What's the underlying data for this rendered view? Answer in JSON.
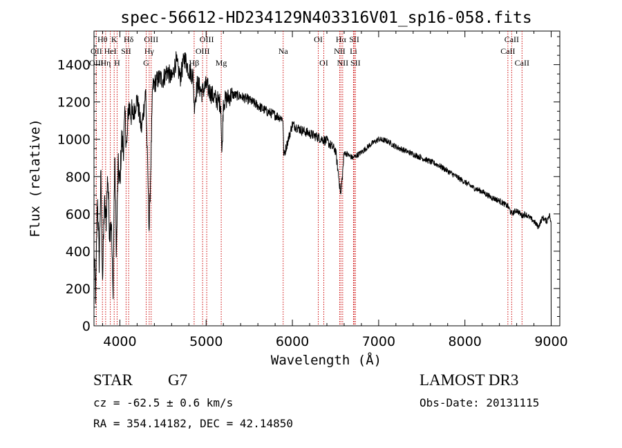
{
  "chart_data": {
    "type": "line",
    "title": "spec-56612-HD234129N403316V01_sp16-058.fits",
    "xlabel": "Wavelength (Å)",
    "ylabel": "Flux (relative)",
    "xlim": [
      3700,
      9100
    ],
    "ylim": [
      0,
      1580
    ],
    "x_ticks": [
      4000,
      5000,
      6000,
      7000,
      8000,
      9000
    ],
    "y_ticks": [
      0,
      200,
      400,
      600,
      800,
      1000,
      1200,
      1400
    ],
    "grid": false,
    "series": [
      {
        "name": "Flux",
        "color": "#000000",
        "x": [
          3700,
          3720,
          3740,
          3760,
          3780,
          3800,
          3820,
          3840,
          3860,
          3880,
          3900,
          3920,
          3940,
          3960,
          3980,
          4000,
          4020,
          4040,
          4060,
          4080,
          4100,
          4150,
          4200,
          4250,
          4300,
          4340,
          4380,
          4420,
          4460,
          4500,
          4550,
          4600,
          4650,
          4700,
          4750,
          4800,
          4850,
          4861,
          4900,
          4950,
          5000,
          5050,
          5100,
          5150,
          5170,
          5183,
          5200,
          5250,
          5300,
          5400,
          5500,
          5600,
          5700,
          5800,
          5890,
          5900,
          6000,
          6100,
          6200,
          6300,
          6400,
          6500,
          6563,
          6600,
          6700,
          6800,
          6900,
          7000,
          7100,
          7200,
          7300,
          7400,
          7500,
          7600,
          7700,
          7800,
          7900,
          8000,
          8100,
          8200,
          8300,
          8400,
          8500,
          8542,
          8600,
          8662,
          8700,
          8800,
          8850,
          8900,
          8950,
          8980,
          9000
        ],
        "values": [
          380,
          150,
          700,
          350,
          800,
          250,
          650,
          560,
          820,
          500,
          580,
          150,
          900,
          400,
          850,
          760,
          1000,
          950,
          1120,
          940,
          1180,
          1120,
          1220,
          1050,
          1260,
          500,
          1280,
          1310,
          1330,
          1320,
          1370,
          1320,
          1420,
          1330,
          1440,
          1370,
          1340,
          1180,
          1300,
          1250,
          1290,
          1250,
          1220,
          1200,
          1190,
          900,
          1200,
          1220,
          1240,
          1230,
          1210,
          1180,
          1150,
          1130,
          1110,
          910,
          1080,
          1050,
          1030,
          1010,
          990,
          940,
          700,
          930,
          900,
          930,
          970,
          1000,
          990,
          960,
          940,
          920,
          900,
          880,
          860,
          830,
          800,
          770,
          740,
          720,
          690,
          670,
          640,
          600,
          620,
          590,
          600,
          560,
          530,
          580,
          560,
          600,
          540
        ]
      }
    ],
    "lines": [
      {
        "name": "Hθ",
        "x": 3798,
        "row": 0
      },
      {
        "name": "CaII K",
        "x": 3934,
        "row": 0,
        "text": "K"
      },
      {
        "name": "Hδ",
        "x": 4102,
        "row": 0
      },
      {
        "name": "OIII",
        "x": 4363,
        "row": 0
      },
      {
        "name": "OIII",
        "x": 5007,
        "row": 0
      },
      {
        "name": "OI",
        "x": 6300,
        "row": 0
      },
      {
        "name": "Hα",
        "x": 6563,
        "row": 0
      },
      {
        "name": "SII",
        "x": 6717,
        "row": 0
      },
      {
        "name": "CaII",
        "x": 8542,
        "row": 0
      },
      {
        "name": "OII",
        "x": 3727,
        "row": 1
      },
      {
        "name": "HeI",
        "x": 3889,
        "row": 1
      },
      {
        "name": "SII",
        "x": 4072,
        "row": 1
      },
      {
        "name": "Hγ",
        "x": 4340,
        "row": 1
      },
      {
        "name": "OIII",
        "x": 4959,
        "row": 1
      },
      {
        "name": "Na",
        "x": 5893,
        "row": 1
      },
      {
        "name": "NII",
        "x": 6548,
        "row": 1
      },
      {
        "name": "Li",
        "x": 6708,
        "row": 1
      },
      {
        "name": "CaII",
        "x": 8498,
        "row": 1
      },
      {
        "name": "OIII",
        "x": 3727,
        "row": 2
      },
      {
        "name": "Hη",
        "x": 3835,
        "row": 2
      },
      {
        "name": "CaII H",
        "x": 3968,
        "row": 2,
        "text": "H"
      },
      {
        "name": "G",
        "x": 4305,
        "row": 2
      },
      {
        "name": "Hβ",
        "x": 4861,
        "row": 2
      },
      {
        "name": "Mg",
        "x": 5175,
        "row": 2
      },
      {
        "name": "OI",
        "x": 6364,
        "row": 2
      },
      {
        "name": "NII",
        "x": 6583,
        "row": 2
      },
      {
        "name": "SII",
        "x": 6731,
        "row": 2
      },
      {
        "name": "CaII",
        "x": 8662,
        "row": 2
      }
    ]
  },
  "info": {
    "class": "STAR",
    "subclass": "G7",
    "survey": "LAMOST DR3",
    "cz": "cz = -62.5 ± 0.6 km/s",
    "obs_date": "Obs-Date: 20131115",
    "coords": "RA = 354.14182, DEC =  42.14850"
  }
}
